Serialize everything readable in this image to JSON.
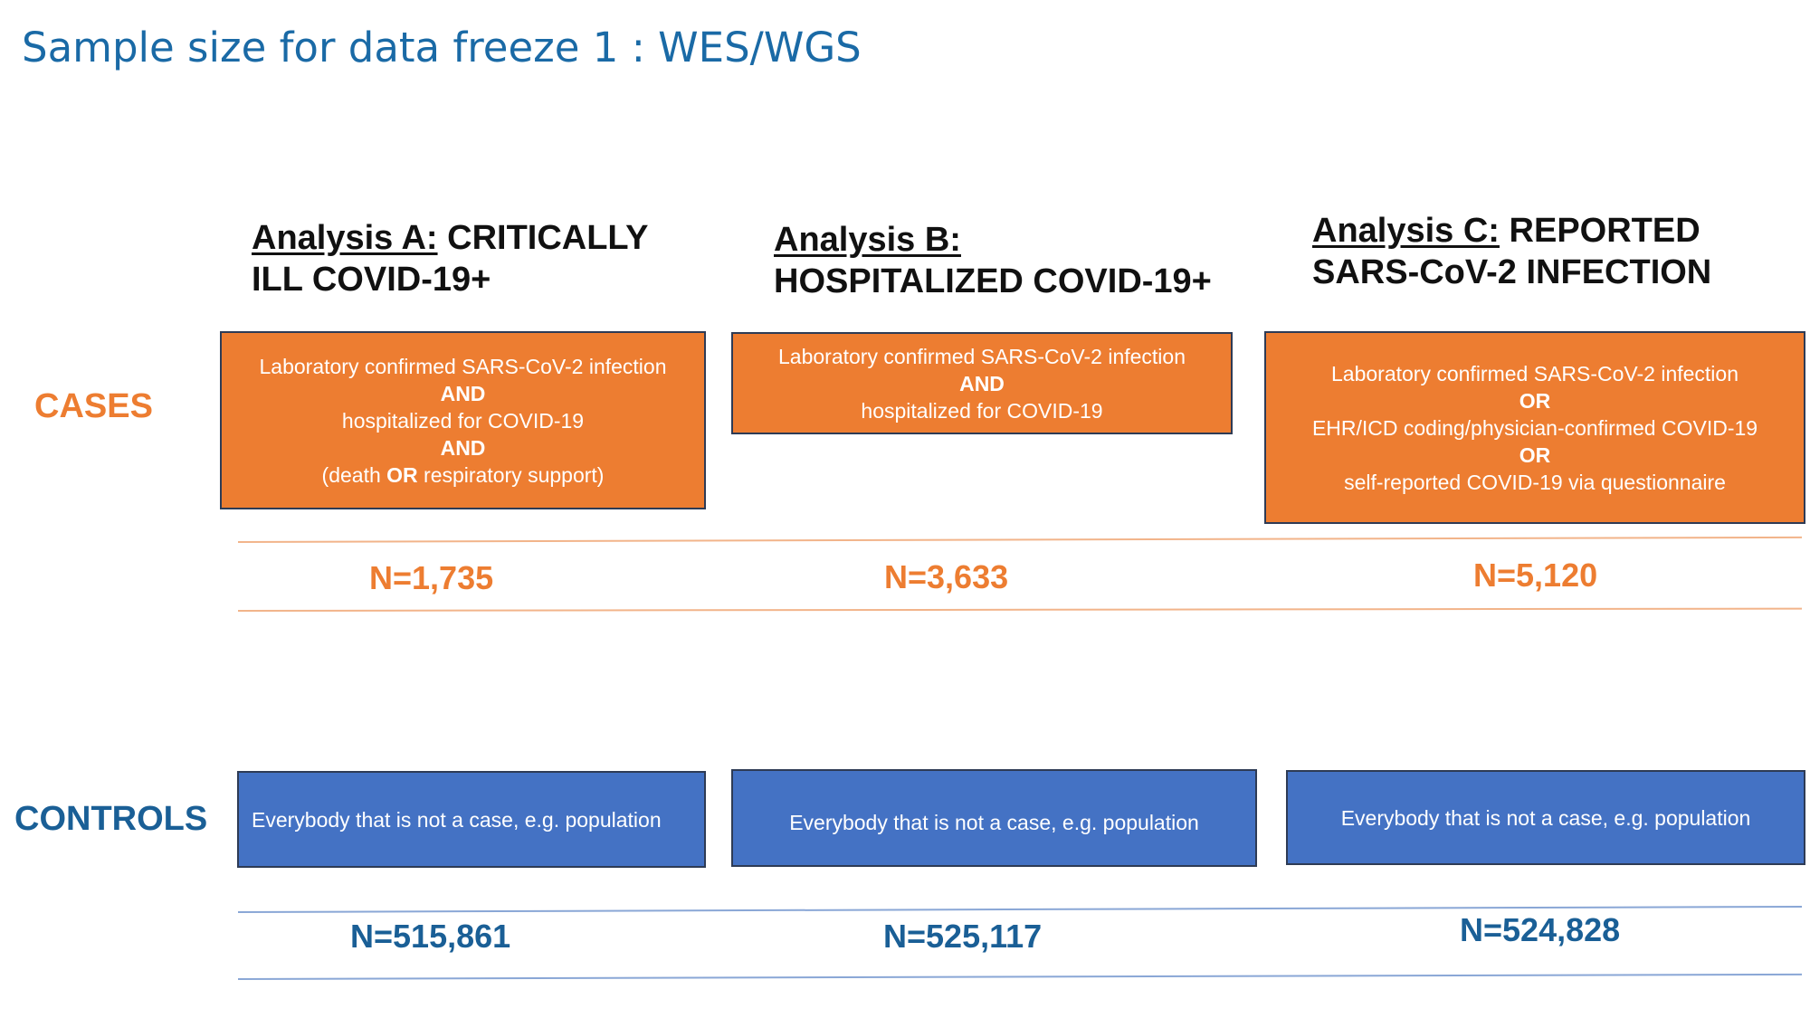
{
  "title": "Sample size for data freeze 1 : WES/WGS",
  "row_labels": {
    "cases": "CASES",
    "controls": "CONTROLS"
  },
  "analyses": [
    {
      "heading_prefix": "Analysis A:",
      "heading_rest": "CRITICALLY",
      "heading_line2": "ILL COVID-19+",
      "cases_box": {
        "line1": "Laboratory confirmed SARS-CoV-2 infection",
        "op1": "AND",
        "line2": "hospitalized for COVID-19",
        "op2": "AND",
        "line3_pre": "(death ",
        "line3_op": "OR",
        "line3_post": " respiratory support)"
      },
      "cases_n": "N=1,735",
      "controls_box": "Everybody that is not a case, e.g. population",
      "controls_n": "N=515,861"
    },
    {
      "heading_prefix": "Analysis B:",
      "heading_rest": "",
      "heading_line2": "HOSPITALIZED COVID-19+",
      "cases_box": {
        "line1": "Laboratory confirmed SARS-CoV-2 infection",
        "op1": "AND",
        "line2": "hospitalized for COVID-19"
      },
      "cases_n": "N=3,633",
      "controls_box": "Everybody that is not a case, e.g. population",
      "controls_n": "N=525,117"
    },
    {
      "heading_prefix": "Analysis C:",
      "heading_rest": "REPORTED",
      "heading_line2": "SARS-CoV-2 INFECTION",
      "cases_box": {
        "line1": "Laboratory confirmed SARS-CoV-2 infection",
        "op1": "OR",
        "line2": "EHR/ICD coding/physician-confirmed COVID-19",
        "op2": "OR",
        "line3": "self-reported COVID-19 via questionnaire"
      },
      "cases_n": "N=5,120",
      "controls_box": "Everybody that is not a case, e.g. population",
      "controls_n": "N=524,828"
    }
  ],
  "colors": {
    "title": "#1a6aa6",
    "cases": "#ed7d31",
    "controls_box": "#4472c4",
    "controls_text": "#1a5f96"
  }
}
